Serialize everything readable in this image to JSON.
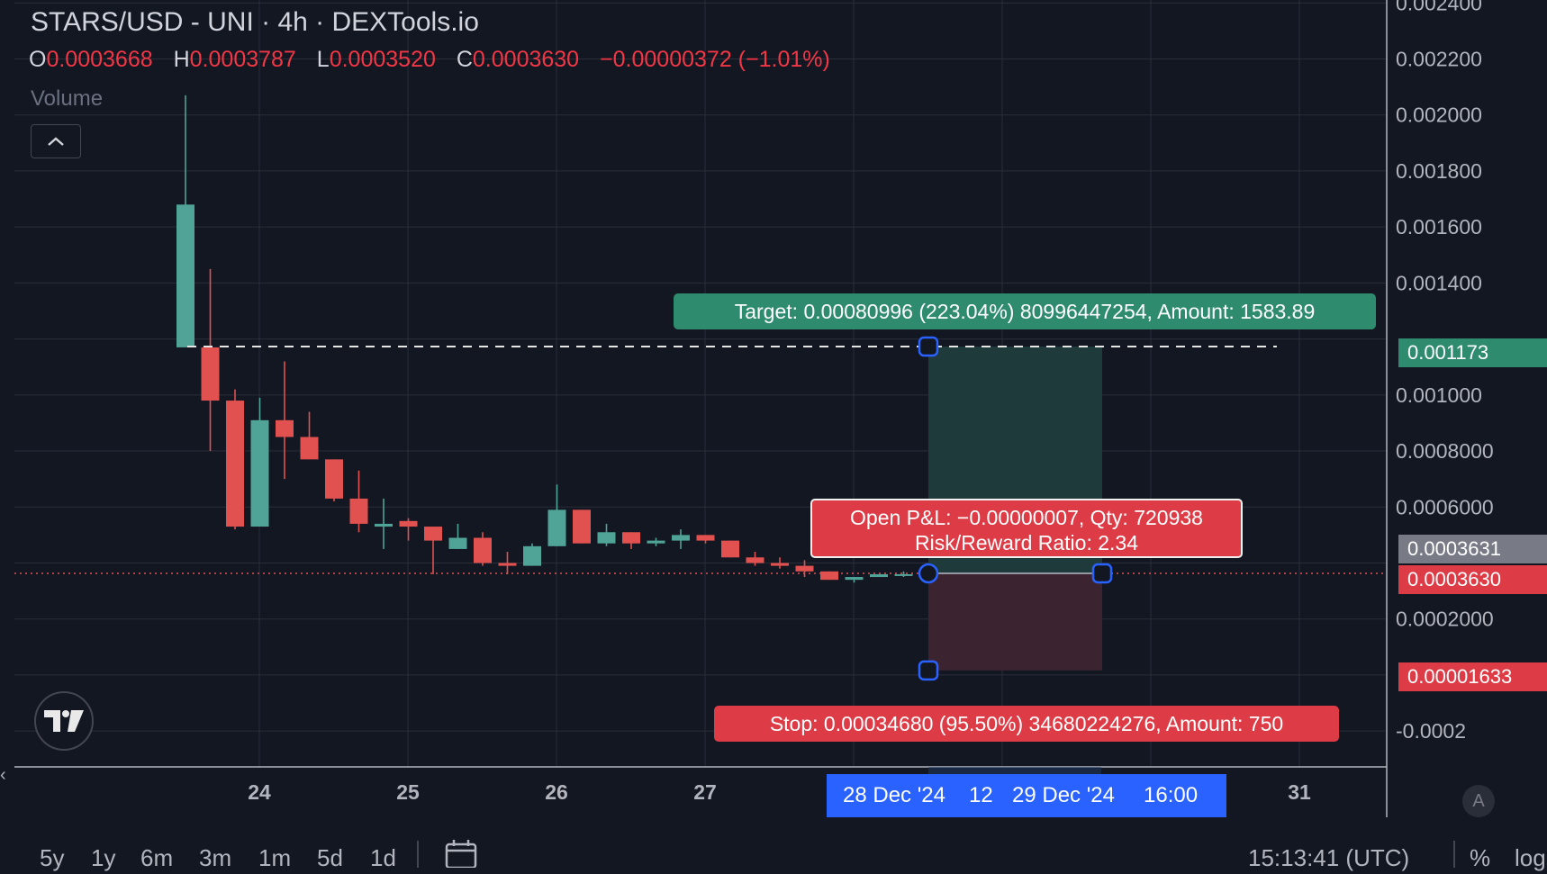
{
  "header": {
    "symbol_line": "STARS/USD - UNI · 4h · DEXTools.io",
    "ohlc": {
      "o_key": "O",
      "o_val": "0.0003668",
      "h_key": "H",
      "h_val": "0.0003787",
      "l_key": "L",
      "l_val": "0.0003520",
      "c_key": "C",
      "c_val": "0.0003630",
      "change": "−0.00000372 (−1.01%)"
    },
    "volume_label": "Volume"
  },
  "colors": {
    "bull": "#4fa397",
    "bear": "#e0514f",
    "background": "#131722",
    "grid": "#2a2e39",
    "target_fill": "#1e3a3b",
    "stop_fill": "#3b2430",
    "handle": "#2962ff"
  },
  "price_axis": {
    "labels": [
      "0.002400",
      "0.002200",
      "0.002000",
      "0.001800",
      "0.001600",
      "0.001400",
      "0.001000",
      "0.0008000",
      "0.0006000",
      "0.0002000",
      "-0.0002"
    ],
    "tags": {
      "target": "0.001173",
      "last": "0.0003631",
      "current": "0.0003630",
      "stop": "0.00001633"
    }
  },
  "time_axis": {
    "labels": [
      "24",
      "25",
      "26",
      "27",
      "31"
    ],
    "selection": {
      "start": "28 Dec '24",
      "mid": "12",
      "end": "29 Dec '24",
      "time": "16:00"
    }
  },
  "position_tool": {
    "target_label": "Target: 0.00080996 (223.04%) 80996447254, Amount: 1583.89",
    "stop_label": "Stop: 0.00034680 (95.50%) 34680224276, Amount: 750",
    "pnl_line1": "Open P&L: −0.00000007, Qty: 720938",
    "pnl_line2": "Risk/Reward Ratio: 2.34",
    "entry_price": 0.000363,
    "target_price": 0.001173,
    "stop_price": 1.633e-05
  },
  "chart_data": {
    "type": "candlestick",
    "interval": "4h",
    "x_ticks": [
      "24",
      "25",
      "26",
      "27",
      "31"
    ],
    "ylim": [
      -0.0003,
      0.00245
    ],
    "candles": [
      {
        "o": 0.00117,
        "h": 0.00207,
        "l": 0.00117,
        "c": 0.00168
      },
      {
        "o": 0.00117,
        "h": 0.00145,
        "l": 0.0008,
        "c": 0.00098
      },
      {
        "o": 0.00098,
        "h": 0.00102,
        "l": 0.00052,
        "c": 0.00053
      },
      {
        "o": 0.00053,
        "h": 0.00099,
        "l": 0.00053,
        "c": 0.00091
      },
      {
        "o": 0.00091,
        "h": 0.00112,
        "l": 0.0007,
        "c": 0.00085
      },
      {
        "o": 0.00085,
        "h": 0.00094,
        "l": 0.00077,
        "c": 0.00077
      },
      {
        "o": 0.00077,
        "h": 0.00077,
        "l": 0.00062,
        "c": 0.00063
      },
      {
        "o": 0.00063,
        "h": 0.00073,
        "l": 0.00051,
        "c": 0.00054
      },
      {
        "o": 0.00053,
        "h": 0.00063,
        "l": 0.00045,
        "c": 0.00054
      },
      {
        "o": 0.00055,
        "h": 0.00056,
        "l": 0.00048,
        "c": 0.00053
      },
      {
        "o": 0.00053,
        "h": 0.00053,
        "l": 0.00036,
        "c": 0.00048
      },
      {
        "o": 0.00045,
        "h": 0.00054,
        "l": 0.00045,
        "c": 0.00049
      },
      {
        "o": 0.00049,
        "h": 0.00051,
        "l": 0.00039,
        "c": 0.0004
      },
      {
        "o": 0.0004,
        "h": 0.00044,
        "l": 0.00036,
        "c": 0.00039
      },
      {
        "o": 0.00039,
        "h": 0.00047,
        "l": 0.00039,
        "c": 0.00046
      },
      {
        "o": 0.00046,
        "h": 0.00068,
        "l": 0.00046,
        "c": 0.00059
      },
      {
        "o": 0.00059,
        "h": 0.00059,
        "l": 0.00047,
        "c": 0.00047
      },
      {
        "o": 0.00047,
        "h": 0.00054,
        "l": 0.00046,
        "c": 0.00051
      },
      {
        "o": 0.00051,
        "h": 0.00051,
        "l": 0.00045,
        "c": 0.00047
      },
      {
        "o": 0.00047,
        "h": 0.00049,
        "l": 0.00046,
        "c": 0.00048
      },
      {
        "o": 0.00048,
        "h": 0.00052,
        "l": 0.00045,
        "c": 0.0005
      },
      {
        "o": 0.0005,
        "h": 0.0005,
        "l": 0.00047,
        "c": 0.00048
      },
      {
        "o": 0.00048,
        "h": 0.00048,
        "l": 0.00042,
        "c": 0.00042
      },
      {
        "o": 0.00042,
        "h": 0.00044,
        "l": 0.00039,
        "c": 0.0004
      },
      {
        "o": 0.0004,
        "h": 0.00042,
        "l": 0.00038,
        "c": 0.00039
      },
      {
        "o": 0.00039,
        "h": 0.00041,
        "l": 0.00035,
        "c": 0.00037
      },
      {
        "o": 0.00037,
        "h": 0.00037,
        "l": 0.00034,
        "c": 0.00034
      },
      {
        "o": 0.00034,
        "h": 0.00035,
        "l": 0.00033,
        "c": 0.00035
      },
      {
        "o": 0.00035,
        "h": 0.00036,
        "l": 0.00035,
        "c": 0.00036
      },
      {
        "o": 0.00036,
        "h": 0.00037,
        "l": 0.00035,
        "c": 0.00036
      },
      {
        "o": 0.000367,
        "h": 0.000379,
        "l": 0.000352,
        "c": 0.000363
      }
    ]
  },
  "bottom_toolbar": {
    "ranges": [
      "5y",
      "1y",
      "6m",
      "3m",
      "1m",
      "5d",
      "1d"
    ],
    "clock": "15:13:41 (UTC)",
    "percent": "%",
    "log": "log",
    "auto": "A"
  }
}
